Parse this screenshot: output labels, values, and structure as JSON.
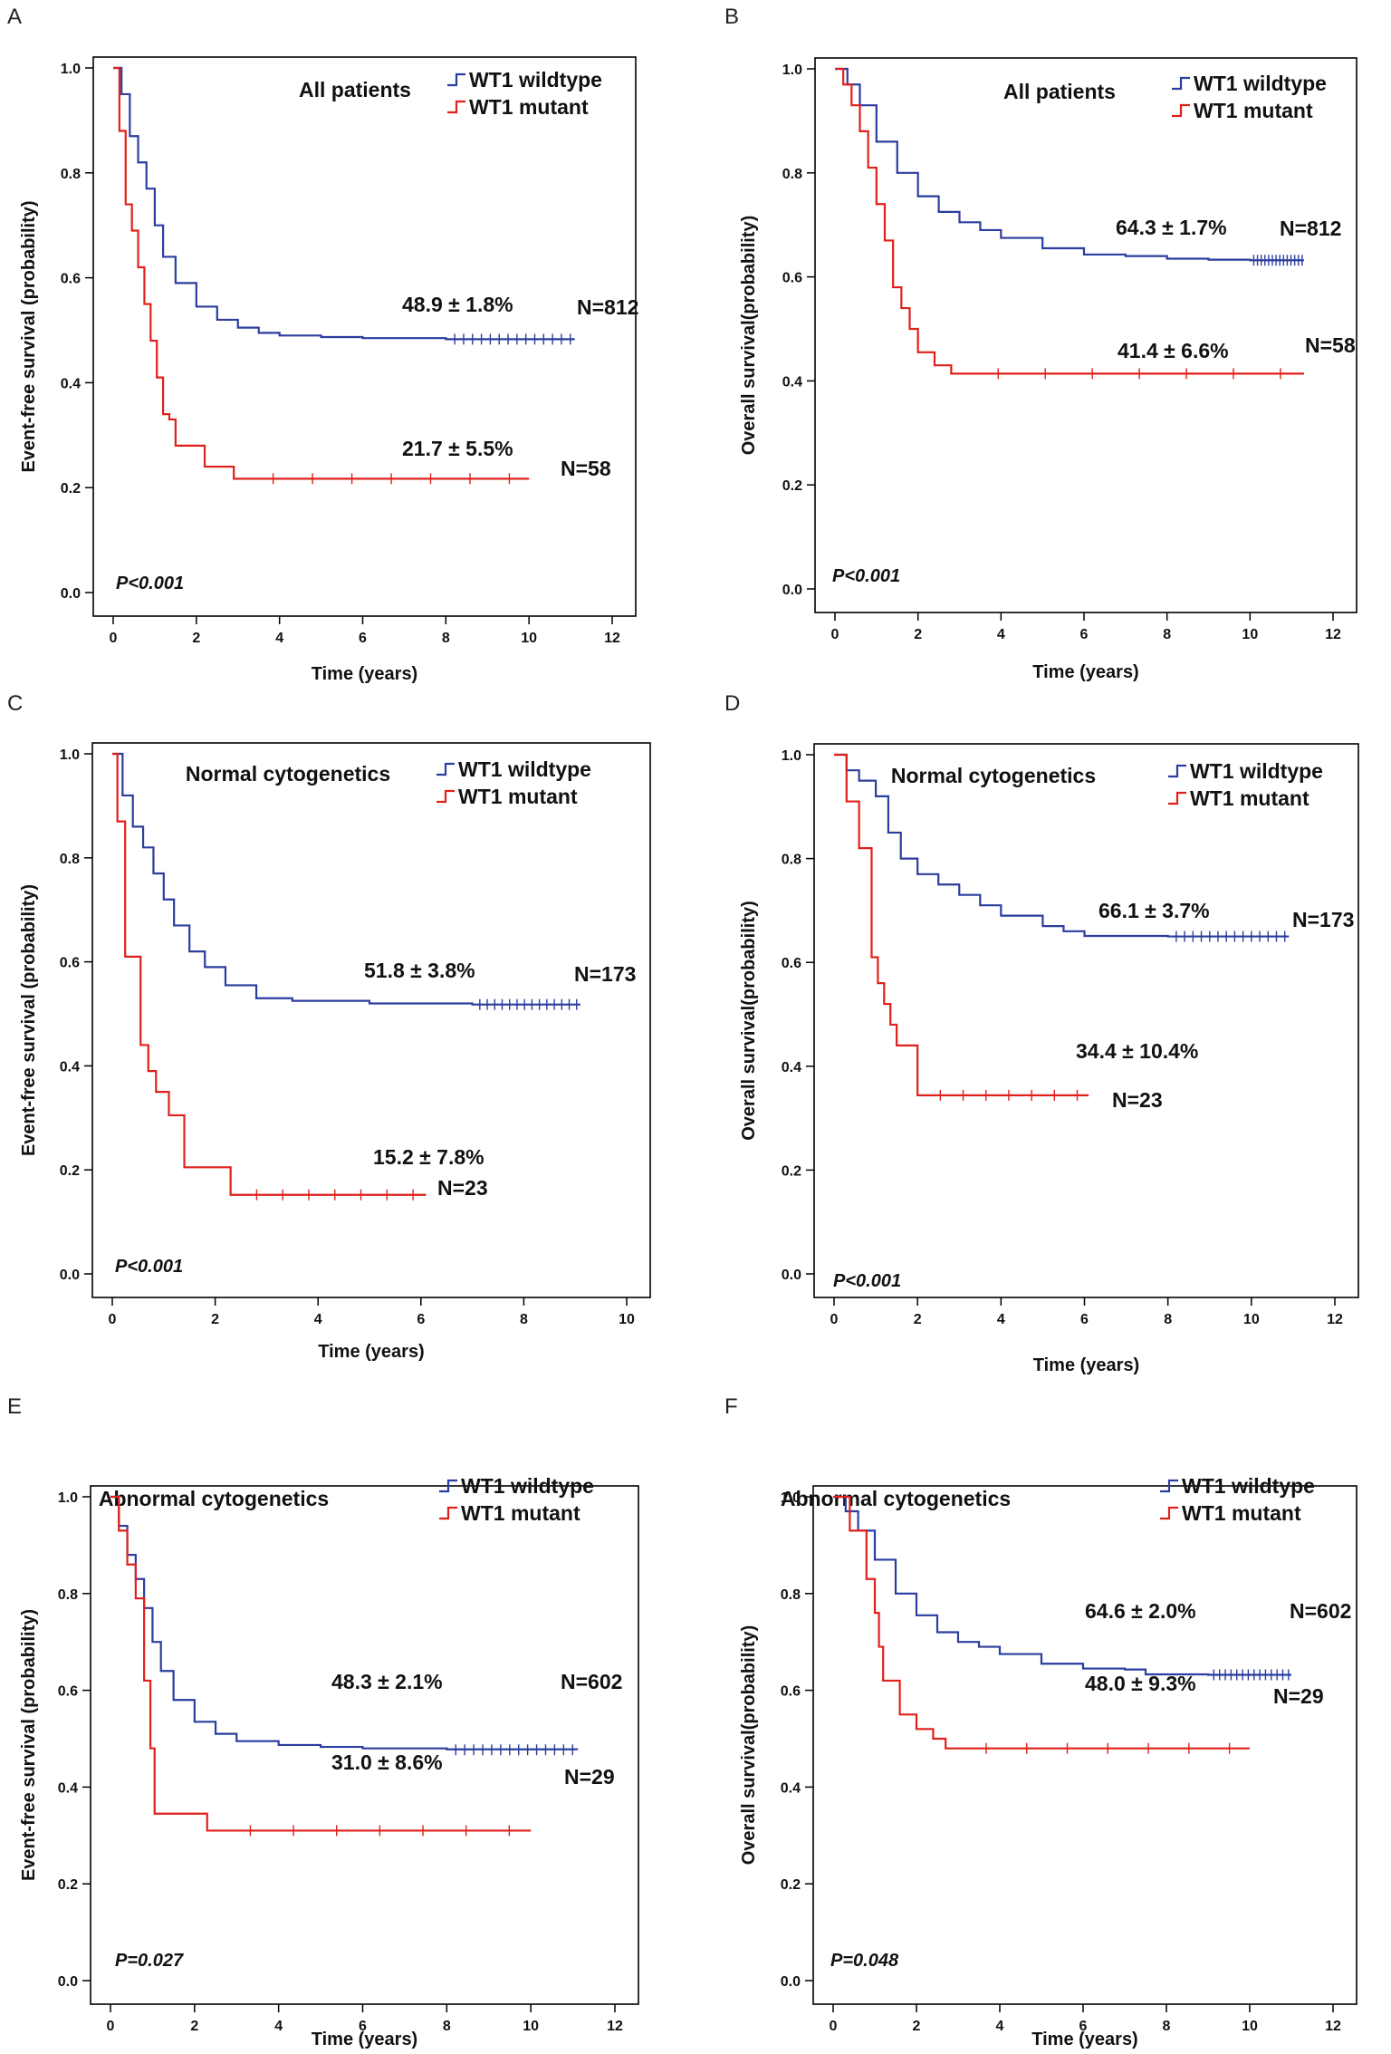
{
  "legend_labels": [
    "WT1 wildtype",
    "WT1 mutant"
  ],
  "colors": {
    "wildtype": "#2b3d9e",
    "mutant": "#e0201b",
    "axis": "#000000"
  },
  "chart_data": [
    {
      "panel": "A",
      "type": "line",
      "title": "All patients",
      "xlabel": "Time (years)",
      "ylabel": "Event-free survival (probability)",
      "xlim": [
        0,
        12
      ],
      "ylim": [
        0,
        1
      ],
      "x_ticks": [
        0,
        2,
        4,
        6,
        8,
        10,
        12
      ],
      "y_ticks": [
        0.0,
        0.2,
        0.4,
        0.6,
        0.8,
        1.0
      ],
      "p_value": "P<0.001",
      "series": [
        {
          "name": "WT1 wildtype",
          "n_label": "N=812",
          "estimate_label": "48.9 ± 1.8%",
          "x": [
            0,
            0.2,
            0.4,
            0.6,
            0.8,
            1.0,
            1.2,
            1.5,
            2.0,
            2.5,
            3.0,
            3.5,
            4.0,
            5.0,
            6.0,
            8.0,
            11.1
          ],
          "y": [
            1.0,
            0.95,
            0.87,
            0.82,
            0.77,
            0.7,
            0.64,
            0.59,
            0.545,
            0.52,
            0.505,
            0.495,
            0.49,
            0.487,
            0.485,
            0.483,
            0.483
          ]
        },
        {
          "name": "WT1 mutant",
          "n_label": "N=58",
          "estimate_label": "21.7 ± 5.5%",
          "x": [
            0,
            0.15,
            0.3,
            0.45,
            0.6,
            0.75,
            0.9,
            1.05,
            1.2,
            1.35,
            1.5,
            2.2,
            2.9,
            10.0
          ],
          "y": [
            1.0,
            0.88,
            0.74,
            0.69,
            0.62,
            0.55,
            0.48,
            0.41,
            0.34,
            0.33,
            0.28,
            0.24,
            0.217,
            0.217
          ]
        }
      ]
    },
    {
      "panel": "B",
      "type": "line",
      "title": "All patients",
      "xlabel": "Time (years)",
      "ylabel": "Overall survival(probability)",
      "xlim": [
        0,
        12
      ],
      "ylim": [
        0,
        1
      ],
      "x_ticks": [
        0,
        2,
        4,
        6,
        8,
        10,
        12
      ],
      "y_ticks": [
        0.0,
        0.2,
        0.4,
        0.6,
        0.8,
        1.0
      ],
      "p_value": "P<0.001",
      "series": [
        {
          "name": "WT1 wildtype",
          "n_label": "N=812",
          "estimate_label": "64.3 ± 1.7%",
          "x": [
            0,
            0.3,
            0.6,
            1.0,
            1.5,
            2.0,
            2.5,
            3.0,
            3.5,
            4.0,
            5.0,
            6.0,
            7.0,
            8.0,
            9.0,
            10.0,
            11.3
          ],
          "y": [
            1.0,
            0.97,
            0.93,
            0.86,
            0.8,
            0.755,
            0.725,
            0.705,
            0.69,
            0.675,
            0.655,
            0.643,
            0.64,
            0.635,
            0.633,
            0.632,
            0.632
          ]
        },
        {
          "name": "WT1 mutant",
          "n_label": "N=58",
          "estimate_label": "41.4 ± 6.6%",
          "x": [
            0,
            0.2,
            0.4,
            0.6,
            0.8,
            1.0,
            1.2,
            1.4,
            1.6,
            1.8,
            2.0,
            2.4,
            2.8,
            11.3
          ],
          "y": [
            1.0,
            0.97,
            0.93,
            0.88,
            0.81,
            0.74,
            0.67,
            0.58,
            0.54,
            0.5,
            0.455,
            0.43,
            0.414,
            0.414
          ]
        }
      ]
    },
    {
      "panel": "C",
      "type": "line",
      "title": "Normal cytogenetics",
      "xlabel": "Time (years)",
      "ylabel": "Event-free survival (probability)",
      "xlim": [
        0,
        10
      ],
      "ylim": [
        0,
        1
      ],
      "x_ticks": [
        0,
        2,
        4,
        6,
        8,
        10
      ],
      "y_ticks": [
        0.0,
        0.2,
        0.4,
        0.6,
        0.8,
        1.0
      ],
      "p_value": "P<0.001",
      "series": [
        {
          "name": "WT1 wildtype",
          "n_label": "N=173",
          "estimate_label": "51.8 ± 3.8%",
          "x": [
            0,
            0.2,
            0.4,
            0.6,
            0.8,
            1.0,
            1.2,
            1.5,
            1.8,
            2.2,
            2.8,
            3.5,
            5.0,
            7.0,
            9.1
          ],
          "y": [
            1.0,
            0.92,
            0.86,
            0.82,
            0.77,
            0.72,
            0.67,
            0.62,
            0.59,
            0.555,
            0.53,
            0.525,
            0.52,
            0.518,
            0.518
          ]
        },
        {
          "name": "WT1 mutant",
          "n_label": "N=23",
          "estimate_label": "15.2 ± 7.8%",
          "x": [
            0,
            0.1,
            0.25,
            0.55,
            0.7,
            0.85,
            1.1,
            1.4,
            2.3,
            6.1
          ],
          "y": [
            1.0,
            0.87,
            0.61,
            0.44,
            0.39,
            0.35,
            0.305,
            0.205,
            0.152,
            0.152
          ]
        }
      ]
    },
    {
      "panel": "D",
      "type": "line",
      "title": "Normal cytogenetics",
      "xlabel": "Time (years)",
      "ylabel": "Overall survival(probability)",
      "xlim": [
        0,
        12
      ],
      "ylim": [
        0,
        1
      ],
      "x_ticks": [
        0,
        2,
        4,
        6,
        8,
        10,
        12
      ],
      "y_ticks": [
        0.0,
        0.2,
        0.4,
        0.6,
        0.8,
        1.0
      ],
      "p_value": "P<0.001",
      "series": [
        {
          "name": "WT1 wildtype",
          "n_label": "N=173",
          "estimate_label": "66.1 ± 3.7%",
          "x": [
            0,
            0.3,
            0.6,
            1.0,
            1.3,
            1.6,
            2.0,
            2.5,
            3.0,
            3.5,
            4.0,
            5.0,
            5.5,
            6.0,
            8.0,
            10.9
          ],
          "y": [
            1.0,
            0.97,
            0.95,
            0.92,
            0.85,
            0.8,
            0.77,
            0.75,
            0.73,
            0.71,
            0.69,
            0.67,
            0.66,
            0.651,
            0.65,
            0.65
          ]
        },
        {
          "name": "WT1 mutant",
          "n_label": "N=23",
          "estimate_label": "34.4 ± 10.4%",
          "x": [
            0,
            0.3,
            0.6,
            0.9,
            1.05,
            1.2,
            1.35,
            1.5,
            2.0,
            6.1
          ],
          "y": [
            1.0,
            0.91,
            0.82,
            0.61,
            0.56,
            0.52,
            0.48,
            0.44,
            0.344,
            0.344
          ]
        }
      ]
    },
    {
      "panel": "E",
      "type": "line",
      "title": "Abnormal cytogenetics",
      "xlabel": "Time (years)",
      "ylabel": "Event-free survival (probability)",
      "xlim": [
        0,
        12
      ],
      "ylim": [
        0,
        1
      ],
      "x_ticks": [
        0,
        2,
        4,
        6,
        8,
        10,
        12
      ],
      "y_ticks": [
        0.0,
        0.2,
        0.4,
        0.6,
        0.8,
        1.0
      ],
      "p_value": "P=0.027",
      "series": [
        {
          "name": "WT1 wildtype",
          "n_label": "N=602",
          "estimate_label": "48.3 ± 2.1%",
          "x": [
            0,
            0.2,
            0.4,
            0.6,
            0.8,
            1.0,
            1.2,
            1.5,
            2.0,
            2.5,
            3.0,
            4.0,
            5.0,
            6.0,
            8.0,
            11.1
          ],
          "y": [
            1.0,
            0.94,
            0.88,
            0.83,
            0.77,
            0.7,
            0.64,
            0.58,
            0.535,
            0.51,
            0.495,
            0.487,
            0.483,
            0.48,
            0.478,
            0.477
          ]
        },
        {
          "name": "WT1 mutant",
          "n_label": "N=29",
          "estimate_label": "31.0 ± 8.6%",
          "x": [
            0,
            0.2,
            0.4,
            0.6,
            0.8,
            0.95,
            1.05,
            2.3,
            10.0
          ],
          "y": [
            1.0,
            0.93,
            0.86,
            0.79,
            0.62,
            0.48,
            0.345,
            0.31,
            0.31
          ]
        }
      ]
    },
    {
      "panel": "F",
      "type": "line",
      "title": "Abnormal  cytogenetics",
      "xlabel": "Time (years)",
      "ylabel": "Overall survival(probability)",
      "xlim": [
        0,
        12
      ],
      "ylim": [
        0,
        1
      ],
      "x_ticks": [
        0,
        2,
        4,
        6,
        8,
        10,
        12
      ],
      "y_ticks": [
        0.0,
        0.2,
        0.4,
        0.6,
        0.8,
        1.0
      ],
      "p_value": "P=0.048",
      "series": [
        {
          "name": "WT1 wildtype",
          "n_label": "N=602",
          "estimate_label": "64.6 ± 2.0%",
          "x": [
            0,
            0.3,
            0.6,
            1.0,
            1.5,
            2.0,
            2.5,
            3.0,
            3.5,
            4.0,
            5.0,
            6.0,
            7.0,
            7.5,
            9.0,
            11.0
          ],
          "y": [
            1.0,
            0.97,
            0.93,
            0.87,
            0.8,
            0.755,
            0.72,
            0.7,
            0.69,
            0.675,
            0.655,
            0.645,
            0.643,
            0.633,
            0.632,
            0.632
          ]
        },
        {
          "name": "WT1 mutant",
          "n_label": "N=29",
          "estimate_label": "48.0 ± 9.3%",
          "x": [
            0,
            0.4,
            0.8,
            1.0,
            1.1,
            1.2,
            1.6,
            2.0,
            2.4,
            2.7,
            10.0
          ],
          "y": [
            1.0,
            0.93,
            0.83,
            0.76,
            0.69,
            0.62,
            0.55,
            0.52,
            0.5,
            0.48,
            0.48
          ]
        }
      ]
    }
  ]
}
